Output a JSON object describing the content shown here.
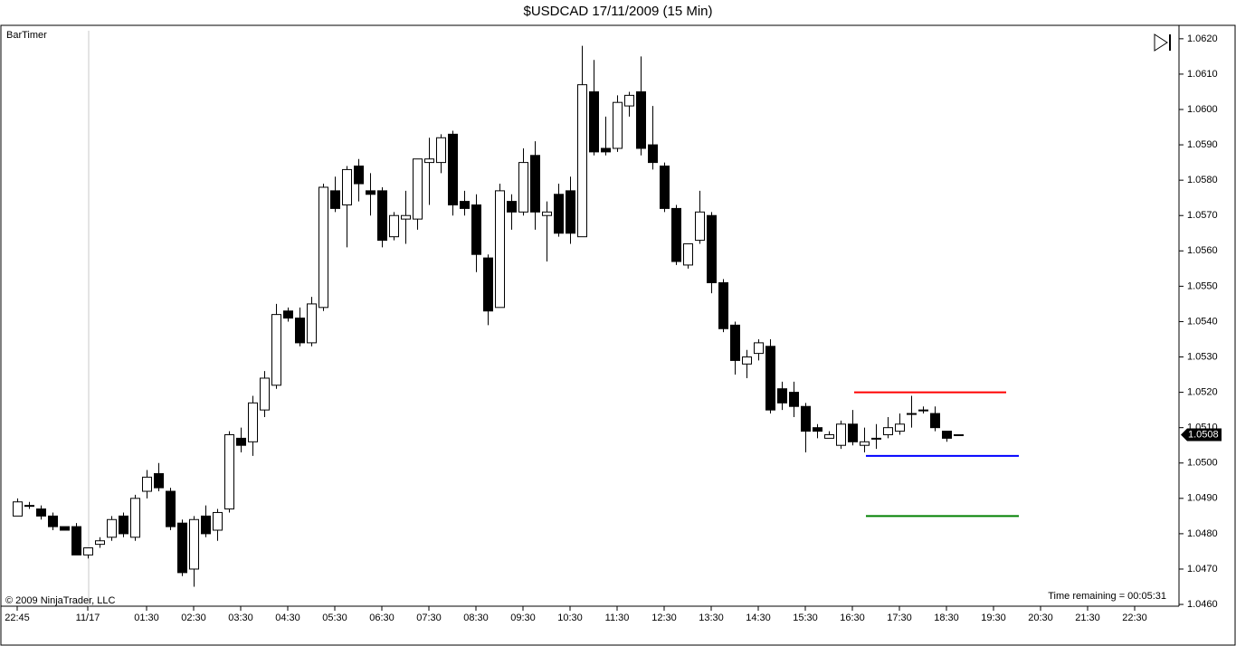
{
  "chart_data": {
    "type": "candlestick",
    "title": "$USDCAD  17/11/2009 (15 Min)",
    "indicator_label": "BarTimer",
    "copyright": "© 2009 NinjaTrader, LLC",
    "time_remaining": "Time remaining = 00:05:31",
    "last_price": 1.0508,
    "up_color": "#ffffff",
    "down_color": "#000000",
    "categories": [
      "22:45",
      null,
      null,
      null,
      null,
      null,
      "11/17",
      null,
      null,
      null,
      null,
      "01:30",
      null,
      null,
      null,
      "02:30",
      null,
      null,
      null,
      "03:30",
      null,
      null,
      null,
      "04:30",
      null,
      null,
      null,
      "05:30",
      null,
      null,
      null,
      "06:30",
      null,
      null,
      null,
      "07:30",
      null,
      null,
      null,
      "08:30",
      null,
      null,
      null,
      "09:30",
      null,
      null,
      null,
      "10:30",
      null,
      null,
      null,
      "11:30",
      null,
      null,
      null,
      "12:30",
      null,
      null,
      null,
      "13:30",
      null,
      null,
      null,
      "14:30",
      null,
      null,
      null,
      "15:30",
      null,
      null,
      null,
      "16:30",
      null,
      null,
      null,
      "17:30",
      null,
      null,
      null,
      "18:30",
      null,
      null,
      null,
      "19:30",
      null,
      null,
      null,
      "20:30",
      null,
      null,
      null,
      "21:30",
      null,
      null,
      null,
      "22:30"
    ],
    "open": [
      1.0485,
      1.0488,
      1.0487,
      1.0485,
      1.0482,
      1.0482,
      1.0474,
      1.0477,
      1.0479,
      1.0485,
      1.0479,
      1.0492,
      1.0497,
      1.0492,
      1.0483,
      1.047,
      1.0485,
      1.0481,
      1.0487,
      1.0507,
      1.0506,
      1.0515,
      1.0522,
      1.0543,
      1.0541,
      1.0534,
      1.0544,
      1.0577,
      1.0573,
      1.0584,
      1.0577,
      1.0577,
      1.0564,
      1.0569,
      1.0569,
      1.0585,
      1.0585,
      1.0593,
      1.0574,
      1.0573,
      1.0558,
      1.0544,
      1.0574,
      1.0571,
      1.0587,
      1.057,
      1.0576,
      1.0577,
      1.0564,
      1.0605,
      1.0589,
      1.0589,
      1.0601,
      1.0605,
      1.059,
      1.0584,
      1.0572,
      1.0556,
      1.0563,
      1.057,
      1.0551,
      1.0539,
      1.0528,
      1.0531,
      1.0533,
      1.0521,
      1.052,
      1.0516,
      1.051,
      1.0507,
      1.0505,
      1.0511,
      1.0505,
      1.0507,
      1.0508,
      1.0509,
      1.0514,
      1.0515,
      1.0514,
      1.0509,
      1.0508,
      null,
      null,
      null,
      null,
      null,
      null,
      null,
      null,
      null,
      null,
      null,
      null,
      null,
      null,
      null
    ],
    "high": [
      1.049,
      1.0489,
      1.0488,
      1.0486,
      1.0482,
      1.0483,
      1.0476,
      1.0479,
      1.0485,
      1.0486,
      1.0491,
      1.0498,
      1.05,
      1.0493,
      1.0484,
      1.0485,
      1.0488,
      1.0487,
      1.0509,
      1.051,
      1.0519,
      1.0526,
      1.0545,
      1.0544,
      1.0544,
      1.0547,
      1.0579,
      1.0581,
      1.0584,
      1.0586,
      1.0582,
      1.0578,
      1.0571,
      1.0577,
      1.0586,
      1.0592,
      1.0593,
      1.0594,
      1.0577,
      1.0576,
      1.0559,
      1.0579,
      1.0576,
      1.0589,
      1.0591,
      1.0574,
      1.0579,
      1.0581,
      1.0618,
      1.0614,
      1.0598,
      1.0604,
      1.0605,
      1.0615,
      1.0601,
      1.0585,
      1.0573,
      1.0562,
      1.0577,
      1.0571,
      1.0552,
      1.054,
      1.0532,
      1.0535,
      1.0535,
      1.0523,
      1.0523,
      1.0517,
      1.0511,
      1.0509,
      1.0512,
      1.0515,
      1.051,
      1.0511,
      1.0513,
      1.0514,
      1.0519,
      1.0516,
      1.0516,
      1.0509,
      1.0508,
      null,
      null,
      null,
      null,
      null,
      null,
      null,
      null,
      null,
      null,
      null,
      null,
      null,
      null,
      null
    ],
    "low": [
      1.0485,
      1.0487,
      1.0484,
      1.0481,
      1.0481,
      1.0474,
      1.0473,
      1.0476,
      1.0478,
      1.0479,
      1.0478,
      1.049,
      1.0492,
      1.0481,
      1.0468,
      1.0465,
      1.0479,
      1.0478,
      1.0486,
      1.0503,
      1.0502,
      1.0513,
      1.0521,
      1.054,
      1.0533,
      1.0533,
      1.0543,
      1.0571,
      1.0561,
      1.0574,
      1.057,
      1.0561,
      1.0563,
      1.0562,
      1.0566,
      1.0573,
      1.0582,
      1.057,
      1.057,
      1.0554,
      1.0539,
      1.0544,
      1.0566,
      1.057,
      1.0566,
      1.0557,
      1.0564,
      1.0562,
      1.0564,
      1.0587,
      1.0587,
      1.0588,
      1.0598,
      1.0587,
      1.0583,
      1.0571,
      1.0556,
      1.0555,
      1.0562,
      1.0548,
      1.0537,
      1.0525,
      1.0524,
      1.0529,
      1.0514,
      1.0515,
      1.0513,
      1.0503,
      1.0507,
      1.0507,
      1.0504,
      1.0505,
      1.0503,
      1.0504,
      1.0507,
      1.0508,
      1.051,
      1.0514,
      1.0509,
      1.0506,
      1.0508,
      null,
      null,
      null,
      null,
      null,
      null,
      null,
      null,
      null,
      null,
      null,
      null,
      null,
      null,
      null
    ],
    "close": [
      1.0489,
      1.0488,
      1.0485,
      1.0482,
      1.0481,
      1.0474,
      1.0476,
      1.0478,
      1.0484,
      1.048,
      1.049,
      1.0496,
      1.0493,
      1.0482,
      1.0469,
      1.0484,
      1.048,
      1.0486,
      1.0508,
      1.0505,
      1.0517,
      1.0524,
      1.0542,
      1.0541,
      1.0534,
      1.0545,
      1.0578,
      1.0572,
      1.0583,
      1.0579,
      1.0576,
      1.0563,
      1.057,
      1.057,
      1.0586,
      1.0586,
      1.0592,
      1.0573,
      1.0572,
      1.0559,
      1.0543,
      1.0577,
      1.0571,
      1.0585,
      1.0571,
      1.0571,
      1.0565,
      1.0565,
      1.0607,
      1.0588,
      1.0588,
      1.0602,
      1.0604,
      1.0589,
      1.0585,
      1.0572,
      1.0557,
      1.0562,
      1.0571,
      1.0551,
      1.0538,
      1.0529,
      1.053,
      1.0534,
      1.0515,
      1.0517,
      1.0516,
      1.0509,
      1.0509,
      1.0508,
      1.0511,
      1.0506,
      1.0506,
      1.0507,
      1.051,
      1.0511,
      1.0514,
      1.0515,
      1.051,
      1.0507,
      1.0508,
      null,
      null,
      null,
      null,
      null,
      null,
      null,
      null,
      null,
      null,
      null,
      null,
      null,
      null,
      null
    ],
    "levels": [
      {
        "value": 1.052,
        "color": "#ff0000"
      },
      {
        "value": 1.0502,
        "color": "#0000ff"
      },
      {
        "value": 1.0485,
        "color": "#008000"
      }
    ],
    "ylim": [
      1.04595,
      1.06238
    ],
    "yticks": [
      {
        "value": 1.046,
        "label": "1.0460"
      },
      {
        "value": 1.047,
        "label": "1.0470"
      },
      {
        "value": 1.048,
        "label": "1.0480"
      },
      {
        "value": 1.049,
        "label": "1.0490"
      },
      {
        "value": 1.05,
        "label": "1.0500"
      },
      {
        "value": 1.051,
        "label": "1.0510"
      },
      {
        "value": 1.052,
        "label": "1.0520"
      },
      {
        "value": 1.053,
        "label": "1.0530"
      },
      {
        "value": 1.054,
        "label": "1.0540"
      },
      {
        "value": 1.055,
        "label": "1.0550"
      },
      {
        "value": 1.056,
        "label": "1.0560"
      },
      {
        "value": 1.057,
        "label": "1.0570"
      },
      {
        "value": 1.058,
        "label": "1.0580"
      },
      {
        "value": 1.059,
        "label": "1.0590"
      },
      {
        "value": 1.06,
        "label": "1.0600"
      },
      {
        "value": 1.061,
        "label": "1.0610"
      },
      {
        "value": 1.062,
        "label": "1.0620"
      }
    ],
    "grid": false
  }
}
